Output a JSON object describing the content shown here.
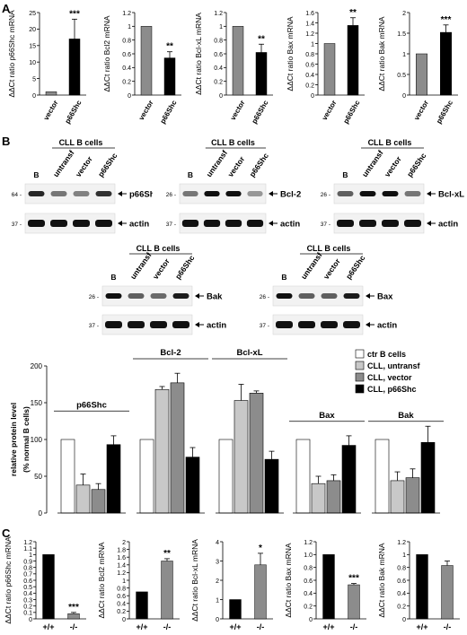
{
  "panel_labels": {
    "a": "A",
    "b": "B",
    "c": "C"
  },
  "colors": {
    "gray_bar": "#8c8c8c",
    "black_bar": "#000000",
    "white_bar": "#ffffff",
    "light_gray_bar": "#c8c8c8",
    "mid_gray_bar": "#8c8c8c"
  },
  "chart_data": [
    {
      "id": "A1",
      "type": "bar",
      "ylabel": "ΔΔCt ratio p66Shc mRNA",
      "categories": [
        "vector",
        "p66Shc"
      ],
      "values": [
        1,
        17
      ],
      "errors": [
        0,
        6
      ],
      "ylim": [
        0,
        25
      ],
      "yticks": [
        "0",
        "5",
        "10",
        "15",
        "20",
        "25"
      ],
      "significance": [
        "",
        "***"
      ]
    },
    {
      "id": "A2",
      "type": "bar",
      "ylabel": "ΔΔCt ratio Bcl2 mRNA",
      "categories": [
        "vector",
        "p66Shc"
      ],
      "values": [
        1.0,
        0.54
      ],
      "errors": [
        0,
        0.09
      ],
      "ylim": [
        0,
        1.2
      ],
      "yticks": [
        "0",
        "0.2",
        "0.4",
        "0.6",
        "0.8",
        "1",
        "1.2"
      ],
      "significance": [
        "",
        "**"
      ]
    },
    {
      "id": "A3",
      "type": "bar",
      "ylabel": "ΔΔCt ratio Bcl-xL mRNA",
      "categories": [
        "vector",
        "p66Shc"
      ],
      "values": [
        1.0,
        0.62
      ],
      "errors": [
        0,
        0.12
      ],
      "ylim": [
        0,
        1.2
      ],
      "yticks": [
        "0",
        "0.2",
        "0.4",
        "0.6",
        "0.8",
        "1",
        "1.2"
      ],
      "significance": [
        "",
        "**"
      ]
    },
    {
      "id": "A4",
      "type": "bar",
      "ylabel": "ΔΔCt ratio Bax mRNA",
      "categories": [
        "vector",
        "p66Shc"
      ],
      "values": [
        1.0,
        1.35
      ],
      "errors": [
        0,
        0.15
      ],
      "ylim": [
        0,
        1.6
      ],
      "yticks": [
        "0",
        "0.2",
        "0.4",
        "0.6",
        "0.8",
        "1",
        "1.2",
        "1.4",
        "1.6"
      ],
      "significance": [
        "",
        "**"
      ]
    },
    {
      "id": "A5",
      "type": "bar",
      "ylabel": "ΔΔCt ratio Bak mRNA",
      "categories": [
        "vector",
        "p66Shc"
      ],
      "values": [
        1.0,
        1.52
      ],
      "errors": [
        0,
        0.18
      ],
      "ylim": [
        0,
        2
      ],
      "yticks": [
        "0",
        "0.5",
        "1",
        "1.5",
        "2"
      ],
      "significance": [
        "",
        "***"
      ]
    },
    {
      "id": "B_bar",
      "type": "bar",
      "ylabel": "relative protein level (% normal B cells)",
      "ylim": [
        0,
        200
      ],
      "yticks": [
        "0",
        "50",
        "100",
        "150",
        "200"
      ],
      "groups": [
        "p66Shc",
        "Bcl-2",
        "Bcl-xL",
        "Bax",
        "Bak"
      ],
      "series": [
        {
          "name": "ctr B cells",
          "values": [
            100,
            100,
            100,
            100,
            100
          ],
          "errors": [
            0,
            0,
            0,
            0,
            0
          ]
        },
        {
          "name": "CLL, untransf",
          "values": [
            38,
            168,
            153,
            40,
            44
          ],
          "errors": [
            15,
            4,
            22,
            10,
            12
          ]
        },
        {
          "name": "CLL, vector",
          "values": [
            32,
            177,
            163,
            44,
            48
          ],
          "errors": [
            8,
            13,
            3,
            8,
            12
          ]
        },
        {
          "name": "CLL, p66Shc",
          "values": [
            93,
            76,
            73,
            92,
            96
          ],
          "errors": [
            12,
            13,
            11,
            13,
            22
          ]
        }
      ]
    },
    {
      "id": "C1",
      "type": "bar",
      "ylabel": "ΔΔCt ratio p66Shc mRNA",
      "categories": [
        "+/+",
        "-/-"
      ],
      "values": [
        1.0,
        0.08
      ],
      "errors": [
        0,
        0.02
      ],
      "ylim": [
        0,
        1.2
      ],
      "yticks": [
        "0",
        "0.1",
        "0.2",
        "0.3",
        "0.4",
        "0.5",
        "0.6",
        "0.7",
        "0.8",
        "0.9",
        "1",
        "1.1",
        "1.2"
      ],
      "significance": [
        "",
        "***"
      ]
    },
    {
      "id": "C2",
      "type": "bar",
      "ylabel": "ΔΔCt ratio Bcl2 mRNA",
      "categories": [
        "+/+",
        "-/-"
      ],
      "values": [
        0.7,
        1.5
      ],
      "errors": [
        0,
        0.06
      ],
      "ylim": [
        0,
        2
      ],
      "yticks": [
        "0",
        "0.2",
        "0.4",
        "0.6",
        "0.8",
        "1",
        "1.2",
        "1.4",
        "1.6",
        "1.8",
        "2"
      ],
      "significance": [
        "",
        "**"
      ]
    },
    {
      "id": "C3",
      "type": "bar",
      "ylabel": "ΔΔCt ratio Bcl-xL mRNA",
      "categories": [
        "+/+",
        "-/-"
      ],
      "values": [
        1,
        2.8
      ],
      "errors": [
        0,
        0.6
      ],
      "ylim": [
        0,
        4
      ],
      "yticks": [
        "0",
        "1",
        "2",
        "3",
        "4"
      ],
      "significance": [
        "",
        "*"
      ]
    },
    {
      "id": "C4",
      "type": "bar",
      "ylabel": "ΔΔCt ratio Bax mRNA",
      "categories": [
        "+/+",
        "-/-"
      ],
      "values": [
        1.0,
        0.53
      ],
      "errors": [
        0,
        0.02
      ],
      "ylim": [
        0,
        1.2
      ],
      "yticks": [
        "0",
        "0.2",
        "0.4",
        "0.6",
        "0.8",
        "1.0",
        "1.2"
      ],
      "significance": [
        "",
        "***"
      ]
    },
    {
      "id": "C5",
      "type": "bar",
      "ylabel": "ΔΔCt ratio Bak mRNA",
      "categories": [
        "+/+",
        "-/-"
      ],
      "values": [
        1.0,
        0.83
      ],
      "errors": [
        0,
        0.07
      ],
      "ylim": [
        0,
        1.2
      ],
      "yticks": [
        "0",
        "0.2",
        "0.4",
        "0.6",
        "0.8",
        "1",
        "1.2"
      ],
      "significance": [
        "",
        ""
      ]
    }
  ],
  "blots": [
    {
      "id": "p66shc",
      "title": "CLL B cells",
      "lanes": [
        "B",
        "untransf",
        "vector",
        "p66Shc"
      ],
      "target": "p66Shc",
      "loading": "actin",
      "mw_target": "64",
      "mw_loading": "37",
      "target_intensity": [
        0.85,
        0.5,
        0.45,
        0.8
      ]
    },
    {
      "id": "bcl2",
      "title": "CLL B cells",
      "lanes": [
        "B",
        "untransf",
        "vector",
        "p66Shc"
      ],
      "target": "Bcl-2",
      "loading": "actin",
      "mw_target": "26",
      "mw_loading": "37",
      "target_intensity": [
        0.5,
        0.95,
        0.95,
        0.35
      ]
    },
    {
      "id": "bclxl",
      "title": "CLL B cells",
      "lanes": [
        "B",
        "untransf",
        "vector",
        "p66Shc"
      ],
      "target": "Bcl-xL",
      "loading": "actin",
      "mw_target": "26",
      "mw_loading": "37",
      "target_intensity": [
        0.6,
        0.95,
        0.95,
        0.5
      ]
    },
    {
      "id": "bak",
      "title": "CLL B cells",
      "lanes": [
        "B",
        "untransf",
        "vector",
        "p66Shc"
      ],
      "target": "Bak",
      "loading": "actin",
      "mw_target": "26",
      "mw_loading": "37",
      "target_intensity": [
        0.95,
        0.6,
        0.55,
        0.9
      ]
    },
    {
      "id": "bax",
      "title": "CLL B cells",
      "lanes": [
        "B",
        "untransf",
        "vector",
        "p66Shc"
      ],
      "target": "Bax",
      "loading": "actin",
      "mw_target": "26",
      "mw_loading": "37",
      "target_intensity": [
        0.95,
        0.6,
        0.6,
        0.9
      ]
    }
  ]
}
